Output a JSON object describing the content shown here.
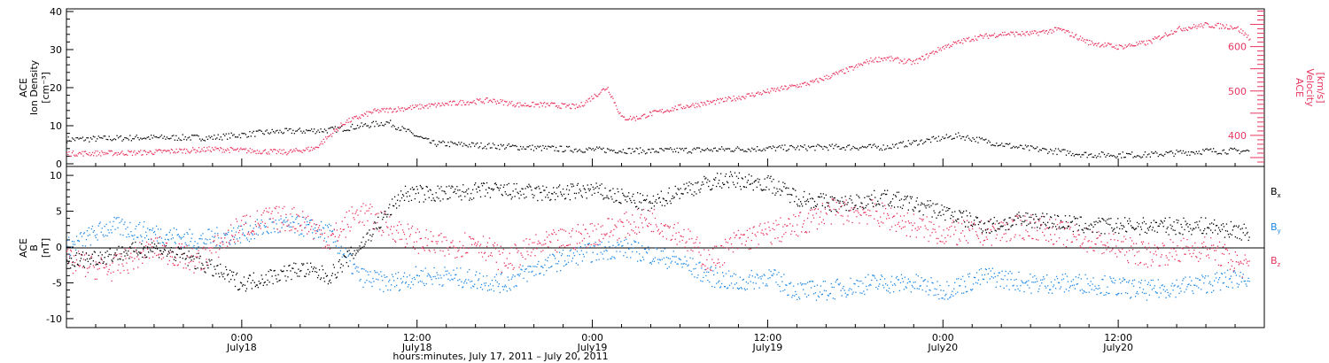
{
  "chart_data": [
    {
      "type": "scatter",
      "panel": "top",
      "ylabel_left": [
        "ACE",
        "Ion Density",
        "[cm⁻³]"
      ],
      "ylabel_right": [
        "ACE",
        "Velocity",
        "[km/s]"
      ],
      "left_ticks": [
        "0",
        "10",
        "20",
        "30",
        "40"
      ],
      "left_ylim": [
        0,
        40
      ],
      "right_ticks": [
        "400",
        "500",
        "600"
      ],
      "right_ylim": [
        330,
        685
      ],
      "x_hours_range": [
        0,
        82
      ],
      "series": [
        {
          "name": "",
          "axis": "left",
          "color": "#000000",
          "x_hours": [
            0,
            5,
            10,
            14,
            18,
            22,
            25,
            28,
            34,
            40,
            46,
            52,
            56,
            61,
            65,
            70,
            74,
            78,
            81
          ],
          "y": [
            6.5,
            7,
            7,
            8.5,
            9,
            11,
            5.5,
            5,
            4,
            3.5,
            4,
            4.5,
            4.5,
            7.5,
            4.5,
            2.5,
            2.5,
            3.5,
            3.5
          ]
        },
        {
          "name": "",
          "axis": "right",
          "color": "#e8355f",
          "x_hours": [
            0,
            5,
            10,
            15,
            17,
            19,
            21,
            24,
            27,
            29,
            31,
            33,
            35,
            37,
            38,
            39,
            40,
            42,
            45,
            48,
            51,
            54,
            55,
            56,
            58,
            60,
            62,
            64,
            66,
            68,
            70,
            72,
            74,
            76,
            78,
            80,
            81
          ],
          "y": [
            360,
            362,
            370,
            363,
            372,
            430,
            455,
            465,
            475,
            480,
            470,
            470,
            465,
            510,
            440,
            440,
            450,
            465,
            480,
            500,
            520,
            555,
            570,
            575,
            565,
            600,
            620,
            630,
            630,
            640,
            610,
            600,
            610,
            640,
            650,
            645,
            620
          ]
        }
      ]
    },
    {
      "type": "scatter",
      "panel": "bottom",
      "ylabel": [
        "ACE",
        "B",
        "[nT]"
      ],
      "ticks": [
        "-10",
        "-5",
        "0",
        "5",
        "10"
      ],
      "ylim": [
        -11,
        11
      ],
      "x_hours_range": [
        0,
        82
      ],
      "legend": [
        "Bx",
        "By",
        "Bz"
      ],
      "series": [
        {
          "name": "Bx",
          "color": "#000000",
          "x_hours": [
            0,
            3,
            6,
            9,
            12,
            14,
            16,
            18,
            20,
            23,
            26,
            29,
            33,
            36,
            40,
            42,
            45,
            48,
            50,
            53,
            56,
            60,
            63,
            66,
            70,
            74,
            78,
            81
          ],
          "y": [
            -2,
            -1,
            0,
            -2,
            -5,
            -4,
            -3,
            -4,
            0,
            7.5,
            7.5,
            8,
            7.5,
            8,
            6,
            8,
            9.5,
            9,
            7,
            6,
            7,
            5,
            3,
            4,
            3,
            3,
            3,
            2
          ]
        },
        {
          "name": "By",
          "color": "#1e88e5",
          "x_hours": [
            0,
            3,
            6,
            9,
            12,
            14,
            16,
            18,
            20,
            22,
            24,
            26,
            30,
            32,
            35,
            38,
            40,
            42,
            44,
            46,
            48,
            50,
            52,
            55,
            58,
            60,
            63,
            66,
            70,
            74,
            78,
            81
          ],
          "y": [
            0,
            3,
            2,
            1,
            2,
            3,
            3,
            2,
            -4,
            -5,
            -4,
            -4,
            -5,
            -3,
            -1,
            0,
            -1,
            -2,
            -4,
            -5,
            -4,
            -6,
            -6,
            -5,
            -5,
            -6,
            -4,
            -5,
            -5,
            -6,
            -5,
            -4
          ]
        },
        {
          "name": "Bz",
          "color": "#e8355f",
          "x_hours": [
            0,
            3,
            6,
            9,
            12,
            14,
            16,
            18,
            20,
            22,
            24,
            26,
            28,
            30,
            32,
            34,
            36,
            38,
            40,
            42,
            44,
            46,
            48,
            50,
            52,
            55,
            58,
            60,
            63,
            66,
            70,
            74,
            78,
            81
          ],
          "y": [
            -2,
            -3,
            0,
            -2,
            3,
            4,
            4,
            1,
            5,
            3,
            1,
            0,
            1,
            -2,
            0,
            1,
            2,
            3,
            4,
            2,
            -2,
            1,
            2,
            3,
            5,
            5,
            3,
            2,
            2,
            3,
            1,
            -1,
            0,
            -3
          ]
        }
      ]
    }
  ],
  "x_axis": {
    "ticks": [
      {
        "hours": 12,
        "time": "0:00",
        "date": "July18"
      },
      {
        "hours": 24,
        "time": "12:00",
        "date": "July18"
      },
      {
        "hours": 36,
        "time": "0:00",
        "date": "July19"
      },
      {
        "hours": 48,
        "time": "12:00",
        "date": "July19"
      },
      {
        "hours": 60,
        "time": "0:00",
        "date": "July20"
      },
      {
        "hours": 72,
        "time": "12:00",
        "date": "July20"
      }
    ],
    "label": "hours:minutes, July 17, 2011 – July 20, 2011"
  },
  "legend_labels": [
    {
      "main": "B",
      "sub": "x",
      "color": "#000000"
    },
    {
      "main": "B",
      "sub": "y",
      "color": "#1e88e5"
    },
    {
      "main": "B",
      "sub": "z",
      "color": "#e8355f"
    }
  ],
  "colors": {
    "black": "#000000",
    "blue": "#1e88e5",
    "pink": "#e8355f"
  }
}
